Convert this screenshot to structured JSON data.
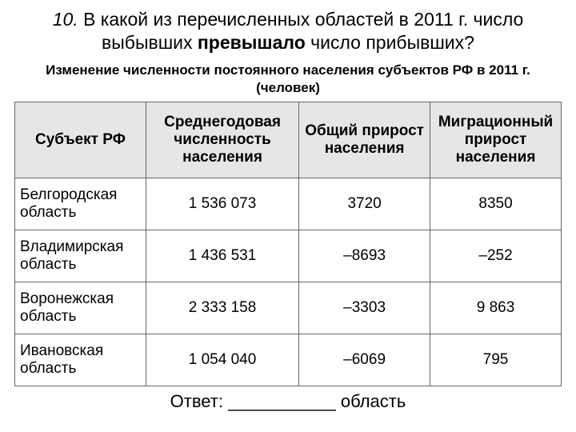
{
  "question": {
    "number": "10.",
    "text_before_bold": "В какой из перечисленных областей в 2011 г. число выбывших ",
    "bold_word": "превышало",
    "text_after_bold": " число прибывших?"
  },
  "table_title": "Изменение численности постоянного населения субъектов РФ в 2011 г. (человек)",
  "table": {
    "columns": [
      "Субъект РФ",
      "Среднегодовая численность населения",
      "Общий прирост населения",
      "Миграционный прирост населения"
    ],
    "rows": [
      {
        "region": "Белгородская область",
        "avg_pop": "1 536 073",
        "total_growth": "3720",
        "migr_growth": "8350"
      },
      {
        "region": "Владимирская область",
        "avg_pop": "1 436 531",
        "total_growth": "–8693",
        "migr_growth": "–252"
      },
      {
        "region": "Воронежская область",
        "avg_pop": "2 333 158",
        "total_growth": "–3303",
        "migr_growth": "9 863"
      },
      {
        "region": "Ивановская область",
        "avg_pop": "1 054 040",
        "total_growth": "–6069",
        "migr_growth": "795"
      }
    ],
    "header_bg": "#e6e6e6",
    "border_color": "#666666",
    "font_size_header": 19,
    "font_size_cell": 19
  },
  "answer": {
    "label": "Ответ:",
    "blank": "___________",
    "suffix": "область"
  },
  "colors": {
    "background": "#ffffff",
    "text": "#000000"
  }
}
